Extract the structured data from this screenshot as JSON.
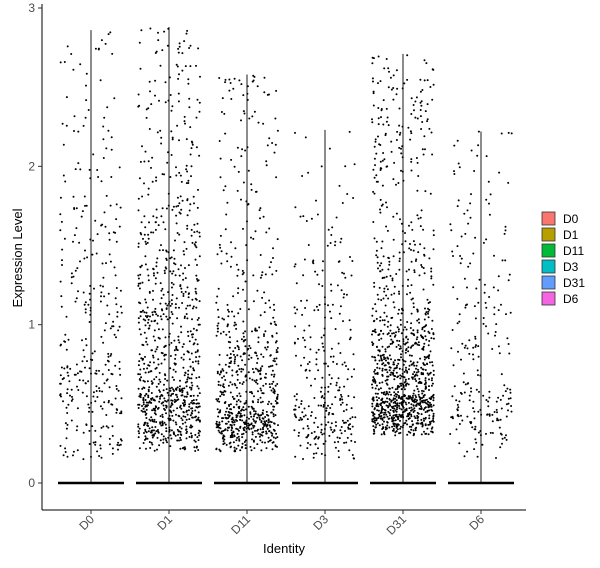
{
  "chart_data": {
    "type": "scatter",
    "subtype": "violin-jitter",
    "title": "",
    "xlabel": "Identity",
    "ylabel": "Expression Level",
    "categories": [
      "D0",
      "D1",
      "D11",
      "D3",
      "D31",
      "D6"
    ],
    "yticks": [
      0,
      1,
      2,
      3
    ],
    "ylim": [
      -0.15,
      3.0
    ],
    "grid": false,
    "legend_position": "right",
    "legend": [
      {
        "label": "D0",
        "color": "#F8766D"
      },
      {
        "label": "D1",
        "color": "#B79F00"
      },
      {
        "label": "D11",
        "color": "#00BA38"
      },
      {
        "label": "D3",
        "color": "#00BFC4"
      },
      {
        "label": "D31",
        "color": "#619CFF"
      },
      {
        "label": "D6",
        "color": "#F564E3"
      }
    ],
    "groups": [
      {
        "name": "D0",
        "max": 2.86,
        "n_points": 330,
        "mode": 0.75,
        "spread": 0.85,
        "low": 0.15,
        "high": 2.86
      },
      {
        "name": "D1",
        "max": 2.88,
        "n_points": 900,
        "mode": 0.6,
        "spread": 0.6,
        "low": 0.2,
        "high": 2.88
      },
      {
        "name": "D11",
        "max": 2.58,
        "n_points": 720,
        "mode": 0.45,
        "spread": 0.35,
        "low": 0.2,
        "high": 2.58
      },
      {
        "name": "D3",
        "max": 2.23,
        "n_points": 300,
        "mode": 0.5,
        "spread": 0.5,
        "low": 0.15,
        "high": 2.23
      },
      {
        "name": "D31",
        "max": 2.71,
        "n_points": 1100,
        "mode": 0.55,
        "spread": 0.35,
        "low": 0.3,
        "high": 2.71
      },
      {
        "name": "D6",
        "max": 2.22,
        "n_points": 230,
        "mode": 0.6,
        "spread": 0.6,
        "low": 0.15,
        "high": 2.22
      }
    ]
  }
}
